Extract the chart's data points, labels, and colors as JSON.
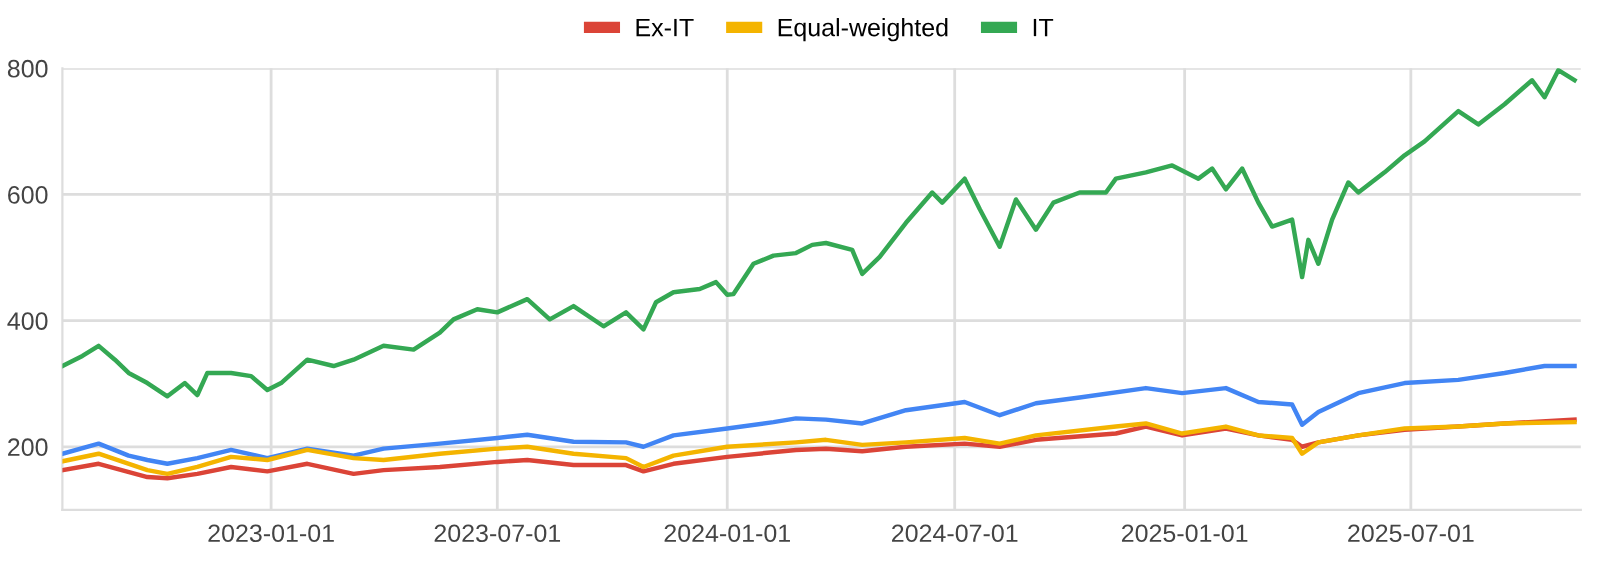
{
  "chart_data": {
    "type": "line",
    "legend": "top",
    "grid": true,
    "marker": "none",
    "line_style": "solid",
    "xlim": [
      "2022-07-18",
      "2025-11-14"
    ],
    "ylim": [
      100,
      800
    ],
    "xticks": [
      "2023-01-01",
      "2023-07-01",
      "2024-01-01",
      "2024-07-01",
      "2025-01-01",
      "2025-07-01"
    ],
    "yticks": [
      200,
      400,
      600,
      800
    ],
    "series": [
      {
        "color": "#4285f4",
        "x": [
          "2022-07-18",
          "2022-08-16",
          "2022-09-09",
          "2022-09-24",
          "2022-10-10",
          "2022-11-03",
          "2022-11-30",
          "2022-12-29",
          "2023-01-30",
          "2023-03-08",
          "2023-04-01",
          "2023-05-16",
          "2023-07-01",
          "2023-07-25",
          "2023-08-31",
          "2023-10-12",
          "2023-10-26",
          "2023-11-19",
          "2024-01-01",
          "2024-02-07",
          "2024-02-25",
          "2024-03-20",
          "2024-04-18",
          "2024-05-23",
          "2024-07-09",
          "2024-08-06",
          "2024-09-04",
          "2024-10-09",
          "2024-12-01",
          "2024-12-30",
          "2025-02-03",
          "2025-03-01",
          "2025-03-28",
          "2025-04-05",
          "2025-04-18",
          "2025-05-20",
          "2025-06-26",
          "2025-08-08",
          "2025-09-14",
          "2025-10-16",
          "2025-11-09"
        ],
        "values": [
          189,
          205,
          186,
          179,
          173,
          182,
          195,
          182,
          197,
          186,
          197,
          205,
          214,
          219,
          208,
          207,
          200,
          218,
          229,
          239,
          245,
          243,
          237,
          258,
          271,
          250,
          269,
          278,
          293,
          285,
          293,
          271,
          267,
          235,
          255,
          285,
          301,
          306,
          317,
          328,
          328
        ]
      },
      {
        "name": "Ex-IT",
        "color": "#db4437",
        "x": [
          "2022-07-18",
          "2022-08-16",
          "2022-09-24",
          "2022-10-10",
          "2022-11-03",
          "2022-11-30",
          "2022-12-29",
          "2023-01-30",
          "2023-03-08",
          "2023-04-01",
          "2023-05-16",
          "2023-07-01",
          "2023-07-25",
          "2023-08-31",
          "2023-10-12",
          "2023-10-26",
          "2023-11-19",
          "2024-01-01",
          "2024-02-25",
          "2024-03-20",
          "2024-04-18",
          "2024-05-23",
          "2024-07-09",
          "2024-08-06",
          "2024-09-04",
          "2024-11-07",
          "2024-12-01",
          "2024-12-30",
          "2025-02-03",
          "2025-03-01",
          "2025-03-28",
          "2025-04-05",
          "2025-04-18",
          "2025-05-20",
          "2025-06-26",
          "2025-08-08",
          "2025-09-14",
          "2025-11-09"
        ],
        "values": [
          163,
          173,
          152,
          150,
          157,
          168,
          161,
          173,
          157,
          163,
          168,
          176,
          179,
          171,
          171,
          161,
          173,
          184,
          195,
          197,
          193,
          200,
          205,
          200,
          211,
          221,
          232,
          218,
          229,
          218,
          211,
          200,
          207,
          218,
          227,
          232,
          237,
          243
        ]
      },
      {
        "name": "Equal-weighted",
        "color": "#f4b400",
        "x": [
          "2022-07-18",
          "2022-08-16",
          "2022-09-24",
          "2022-10-10",
          "2022-11-03",
          "2022-11-30",
          "2022-12-29",
          "2023-01-30",
          "2023-03-08",
          "2023-04-01",
          "2023-05-16",
          "2023-07-01",
          "2023-07-25",
          "2023-08-31",
          "2023-10-12",
          "2023-10-26",
          "2023-11-19",
          "2024-01-01",
          "2024-02-25",
          "2024-03-20",
          "2024-04-18",
          "2024-05-23",
          "2024-07-09",
          "2024-08-06",
          "2024-09-04",
          "2024-11-07",
          "2024-12-01",
          "2024-12-30",
          "2025-02-03",
          "2025-03-01",
          "2025-03-28",
          "2025-04-05",
          "2025-04-18",
          "2025-05-20",
          "2025-06-26",
          "2025-08-08",
          "2025-09-14",
          "2025-11-09"
        ],
        "values": [
          177,
          189,
          163,
          157,
          168,
          184,
          179,
          195,
          182,
          179,
          189,
          197,
          200,
          189,
          182,
          168,
          186,
          200,
          207,
          211,
          203,
          207,
          214,
          205,
          218,
          232,
          237,
          221,
          232,
          218,
          214,
          189,
          207,
          218,
          229,
          232,
          237,
          239
        ]
      },
      {
        "name": "IT",
        "color": "#34a853",
        "x": [
          "2022-07-18",
          "2022-08-03",
          "2022-08-16",
          "2022-08-29",
          "2022-09-09",
          "2022-09-24",
          "2022-10-10",
          "2022-10-24",
          "2022-11-03",
          "2022-11-11",
          "2022-11-30",
          "2022-12-16",
          "2022-12-29",
          "2023-01-09",
          "2023-01-30",
          "2023-02-20",
          "2023-03-08",
          "2023-04-01",
          "2023-04-25",
          "2023-05-16",
          "2023-05-27",
          "2023-06-15",
          "2023-07-01",
          "2023-07-25",
          "2023-08-12",
          "2023-08-31",
          "2023-09-24",
          "2023-10-12",
          "2023-10-26",
          "2023-11-05",
          "2023-11-19",
          "2023-12-10",
          "2023-12-23",
          "2024-01-01",
          "2024-01-06",
          "2024-01-22",
          "2024-02-07",
          "2024-02-25",
          "2024-03-09",
          "2024-03-20",
          "2024-04-10",
          "2024-04-18",
          "2024-05-02",
          "2024-05-23",
          "2024-06-13",
          "2024-06-21",
          "2024-07-09",
          "2024-07-21",
          "2024-08-06",
          "2024-08-19",
          "2024-09-04",
          "2024-09-18",
          "2024-10-09",
          "2024-10-30",
          "2024-11-07",
          "2024-12-01",
          "2024-12-22",
          "2025-01-12",
          "2025-01-23",
          "2025-02-03",
          "2025-02-16",
          "2025-03-01",
          "2025-03-12",
          "2025-03-28",
          "2025-04-05",
          "2025-04-10",
          "2025-04-18",
          "2025-04-29",
          "2025-05-12",
          "2025-05-20",
          "2025-06-10",
          "2025-06-26",
          "2025-07-12",
          "2025-08-08",
          "2025-08-24",
          "2025-09-14",
          "2025-10-06",
          "2025-10-16",
          "2025-10-27",
          "2025-11-09"
        ],
        "values": [
          328,
          344,
          360,
          338,
          317,
          301,
          280,
          301,
          282,
          317,
          317,
          312,
          290,
          301,
          338,
          328,
          338,
          360,
          354,
          381,
          402,
          418,
          413,
          434,
          402,
          423,
          391,
          413,
          386,
          429,
          445,
          450,
          461,
          441,
          442,
          490,
          503,
          507,
          520,
          523,
          512,
          474,
          501,
          555,
          603,
          587,
          625,
          577,
          517,
          592,
          544,
          587,
          603,
          603,
          625,
          635,
          646,
          625,
          641,
          608,
          641,
          587,
          549,
          560,
          469,
          528,
          490,
          560,
          619,
          603,
          635,
          662,
          684,
          732,
          711,
          743,
          781,
          754,
          797,
          781
        ]
      }
    ]
  }
}
